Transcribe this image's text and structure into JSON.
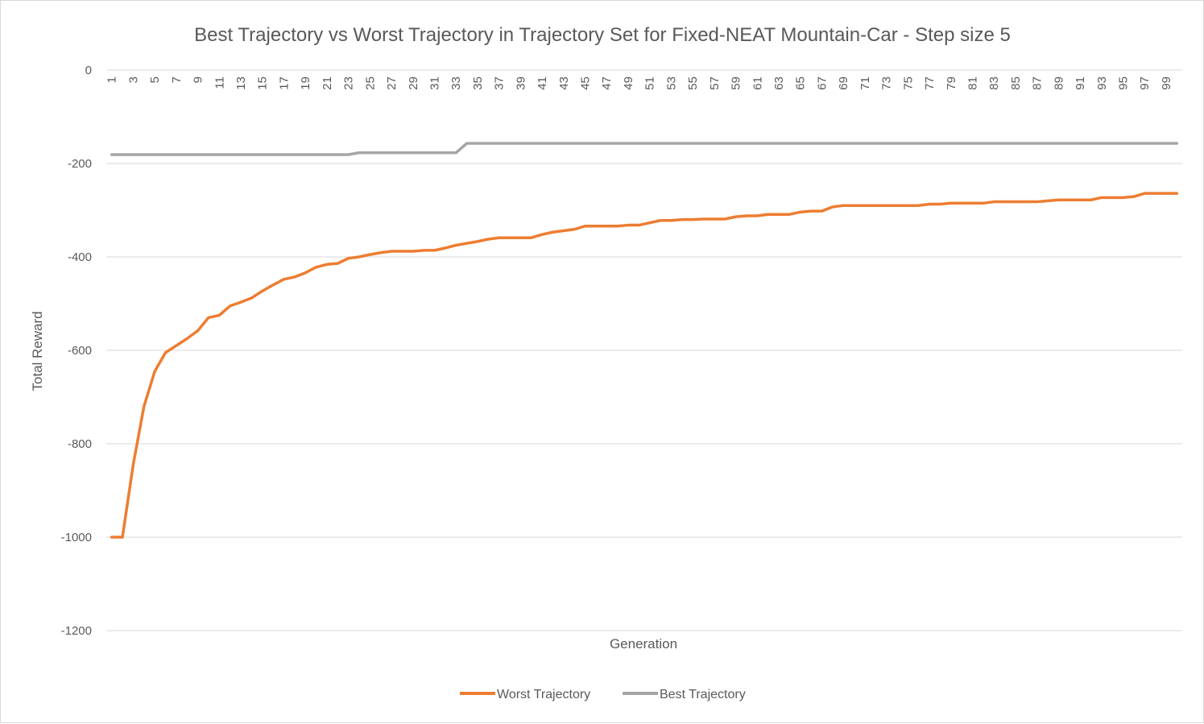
{
  "chart_data": {
    "type": "line",
    "title": "Best Trajectory vs Worst Trajectory in Trajectory Set for Fixed-NEAT Mountain-Car - Step size 5",
    "xlabel": "Generation",
    "ylabel": "Total Reward",
    "ylim": [
      -1200,
      0
    ],
    "yticks": [
      0,
      -200,
      -400,
      -600,
      -800,
      -1000,
      -1200
    ],
    "grid": "horizontal",
    "legend_position": "bottom",
    "x_axis_position": "top",
    "x_tick_label_step": 2,
    "x": [
      1,
      2,
      3,
      4,
      5,
      6,
      7,
      8,
      9,
      10,
      11,
      12,
      13,
      14,
      15,
      16,
      17,
      18,
      19,
      20,
      21,
      22,
      23,
      24,
      25,
      26,
      27,
      28,
      29,
      30,
      31,
      32,
      33,
      34,
      35,
      36,
      37,
      38,
      39,
      40,
      41,
      42,
      43,
      44,
      45,
      46,
      47,
      48,
      49,
      50,
      51,
      52,
      53,
      54,
      55,
      56,
      57,
      58,
      59,
      60,
      61,
      62,
      63,
      64,
      65,
      66,
      67,
      68,
      69,
      70,
      71,
      72,
      73,
      74,
      75,
      76,
      77,
      78,
      79,
      80,
      81,
      82,
      83,
      84,
      85,
      86,
      87,
      88,
      89,
      90,
      91,
      92,
      93,
      94,
      95,
      96,
      97,
      98,
      99,
      100
    ],
    "series": [
      {
        "name": "Worst Trajectory",
        "color": "#ED7D31",
        "values": [
          -1000,
          -1000,
          -845,
          -720,
          -645,
          -605,
          -590,
          -575,
          -558,
          -530,
          -525,
          -505,
          -497,
          -488,
          -473,
          -460,
          -448,
          -443,
          -434,
          -422,
          -416,
          -414,
          -403,
          -400,
          -395,
          -391,
          -388,
          -388,
          -388,
          -386,
          -386,
          -381,
          -375,
          -371,
          -367,
          -362,
          -359,
          -359,
          -359,
          -359,
          -352,
          -347,
          -344,
          -341,
          -334,
          -334,
          -334,
          -334,
          -332,
          -332,
          -327,
          -322,
          -322,
          -320,
          -320,
          -319,
          -319,
          -319,
          -314,
          -312,
          -312,
          -309,
          -309,
          -309,
          -304,
          -302,
          -302,
          -293,
          -290,
          -290,
          -290,
          -290,
          -290,
          -290,
          -290,
          -290,
          -287,
          -287,
          -285,
          -285,
          -285,
          -285,
          -282,
          -282,
          -282,
          -282,
          -282,
          -280,
          -278,
          -278,
          -278,
          -278,
          -273,
          -273,
          -273,
          -271,
          -264,
          -264,
          -264,
          -264
        ]
      },
      {
        "name": "Best Trajectory",
        "color": "#A5A5A5",
        "values": [
          -181,
          -181,
          -181,
          -181,
          -181,
          -181,
          -181,
          -181,
          -181,
          -181,
          -181,
          -181,
          -181,
          -181,
          -181,
          -181,
          -181,
          -181,
          -181,
          -181,
          -181,
          -181,
          -181,
          -177,
          -177,
          -177,
          -177,
          -177,
          -177,
          -177,
          -177,
          -177,
          -177,
          -157,
          -157,
          -157,
          -157,
          -157,
          -157,
          -157,
          -157,
          -157,
          -157,
          -157,
          -157,
          -157,
          -157,
          -157,
          -157,
          -157,
          -157,
          -157,
          -157,
          -157,
          -157,
          -157,
          -157,
          -157,
          -157,
          -157,
          -157,
          -157,
          -157,
          -157,
          -157,
          -157,
          -157,
          -157,
          -157,
          -157,
          -157,
          -157,
          -157,
          -157,
          -157,
          -157,
          -157,
          -157,
          -157,
          -157,
          -157,
          -157,
          -157,
          -157,
          -157,
          -157,
          -157,
          -157,
          -157,
          -157,
          -157,
          -157,
          -157,
          -157,
          -157,
          -157,
          -157,
          -157,
          -157,
          -157
        ]
      }
    ]
  }
}
